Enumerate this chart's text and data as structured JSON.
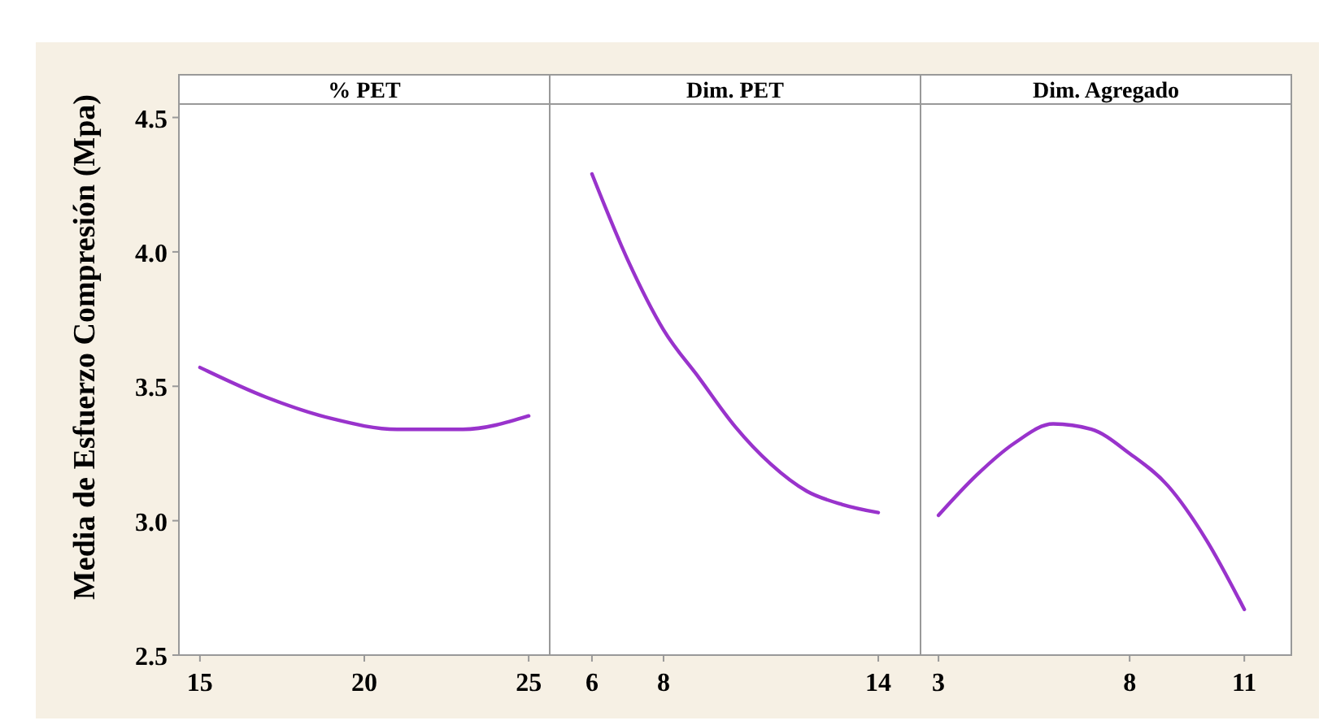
{
  "chart_data": [
    {
      "type": "line",
      "title": "% PET",
      "ylabel": "Media de Esfuerzo Compresión (Mpa)",
      "xlim": [
        14.36,
        25.64
      ],
      "xticks": [
        15,
        20,
        25
      ],
      "ylim": [
        2.5,
        4.55
      ],
      "yticks": [
        2.5,
        {
          "value": 3,
          "label": "3.0"
        },
        3.5,
        {
          "value": 4,
          "label": "4.0"
        },
        4.5
      ],
      "tick_labels": "xy",
      "series": [
        {
          "color": "#9933cc",
          "x": [
            15,
            17,
            19,
            21,
            23,
            25
          ],
          "values": [
            3.57,
            3.46,
            3.38,
            3.34,
            3.34,
            3.39
          ]
        }
      ]
    },
    {
      "type": "line",
      "title": "Dim. PET",
      "xlim": [
        4.82,
        15.18
      ],
      "xticks": [
        6,
        8,
        14
      ],
      "ylim": [
        2.5,
        4.55
      ],
      "tick_labels": "x",
      "series": [
        {
          "color": "#9933cc",
          "x": [
            6,
            7,
            8,
            9,
            10,
            11,
            12,
            13,
            14
          ],
          "values": [
            4.29,
            3.97,
            3.71,
            3.53,
            3.35,
            3.21,
            3.11,
            3.06,
            3.03
          ]
        }
      ]
    },
    {
      "type": "line",
      "title": "Dim. Agregado",
      "xlim": [
        2.53,
        12.23
      ],
      "xticks": [
        3,
        8,
        11
      ],
      "ylim": [
        2.5,
        4.55
      ],
      "tick_labels": "x",
      "series": [
        {
          "color": "#9933cc",
          "x": [
            3,
            4,
            5,
            6,
            7,
            8,
            9,
            10,
            11
          ],
          "values": [
            3.02,
            3.17,
            3.29,
            3.36,
            3.34,
            3.25,
            3.13,
            2.93,
            2.67
          ]
        }
      ]
    }
  ]
}
